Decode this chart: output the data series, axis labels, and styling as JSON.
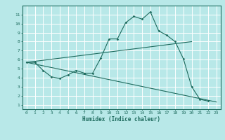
{
  "xlabel": "Humidex (Indice chaleur)",
  "bg_color": "#b8e8e8",
  "grid_color": "#ffffff",
  "line_color": "#1e6b5e",
  "xlim": [
    -0.5,
    23.5
  ],
  "ylim": [
    0.5,
    12
  ],
  "yticks": [
    1,
    2,
    3,
    4,
    5,
    6,
    7,
    8,
    9,
    10,
    11
  ],
  "xticks": [
    0,
    1,
    2,
    3,
    4,
    5,
    6,
    7,
    8,
    9,
    10,
    11,
    12,
    13,
    14,
    15,
    16,
    17,
    18,
    19,
    20,
    21,
    22,
    23
  ],
  "line1_x": [
    0,
    1,
    2,
    3,
    4,
    5,
    6,
    7,
    8,
    9,
    10,
    11,
    12,
    13,
    14,
    15,
    16,
    17,
    18,
    19,
    20,
    21,
    22
  ],
  "line1_y": [
    5.7,
    5.7,
    4.8,
    4.1,
    3.9,
    4.3,
    4.8,
    4.5,
    4.5,
    6.2,
    8.3,
    8.3,
    10.1,
    10.8,
    10.5,
    11.3,
    9.2,
    8.7,
    8.0,
    6.1,
    3.0,
    1.6,
    1.4
  ],
  "line2_x": [
    0,
    20
  ],
  "line2_y": [
    5.7,
    8.0
  ],
  "line3_x": [
    0,
    23
  ],
  "line3_y": [
    5.7,
    1.3
  ]
}
